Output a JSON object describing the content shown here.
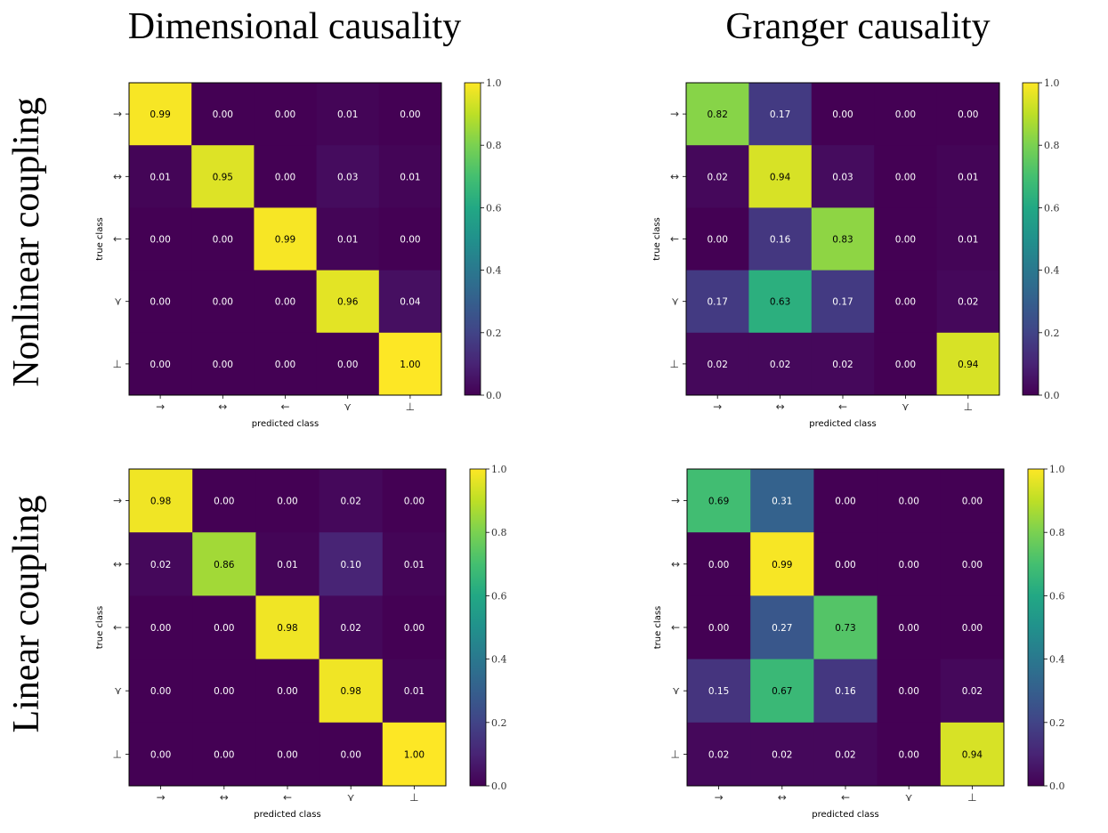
{
  "column_titles": [
    "Dimensional causality",
    "Granger causality"
  ],
  "row_titles": [
    "Nonlinear coupling",
    "Linear coupling"
  ],
  "chart_data": [
    {
      "type": "heatmap",
      "colormap": "viridis",
      "xlabel": "predicted class",
      "ylabel": "true class",
      "x_categories": [
        "→",
        "↔",
        "←",
        "⋎",
        "⊥"
      ],
      "y_categories": [
        "→",
        "↔",
        "←",
        "⋎",
        "⊥"
      ],
      "colorbar_range": [
        0.0,
        1.0
      ],
      "colorbar_ticks": [
        "0.0",
        "0.2",
        "0.4",
        "0.6",
        "0.8",
        "1.0"
      ],
      "values": [
        [
          0.99,
          0.0,
          0.0,
          0.01,
          0.0
        ],
        [
          0.01,
          0.95,
          0.0,
          0.03,
          0.01
        ],
        [
          0.0,
          0.0,
          0.99,
          0.01,
          0.0
        ],
        [
          0.0,
          0.0,
          0.0,
          0.96,
          0.04
        ],
        [
          0.0,
          0.0,
          0.0,
          0.0,
          1.0
        ]
      ]
    },
    {
      "type": "heatmap",
      "colormap": "viridis",
      "xlabel": "predicted class",
      "ylabel": "true class",
      "x_categories": [
        "→",
        "↔",
        "←",
        "⋎",
        "⊥"
      ],
      "y_categories": [
        "→",
        "↔",
        "←",
        "⋎",
        "⊥"
      ],
      "colorbar_range": [
        0.0,
        1.0
      ],
      "colorbar_ticks": [
        "0.0",
        "0.2",
        "0.4",
        "0.6",
        "0.8",
        "1.0"
      ],
      "values": [
        [
          0.82,
          0.17,
          0.0,
          0.0,
          0.0
        ],
        [
          0.02,
          0.94,
          0.03,
          0.0,
          0.01
        ],
        [
          0.0,
          0.16,
          0.83,
          0.0,
          0.01
        ],
        [
          0.17,
          0.63,
          0.17,
          0.0,
          0.02
        ],
        [
          0.02,
          0.02,
          0.02,
          0.0,
          0.94
        ]
      ]
    },
    {
      "type": "heatmap",
      "colormap": "viridis",
      "xlabel": "predicted class",
      "ylabel": "true class",
      "x_categories": [
        "→",
        "↔",
        "←",
        "⋎",
        "⊥"
      ],
      "y_categories": [
        "→",
        "↔",
        "←",
        "⋎",
        "⊥"
      ],
      "colorbar_range": [
        0.0,
        1.0
      ],
      "colorbar_ticks": [
        "0.0",
        "0.2",
        "0.4",
        "0.6",
        "0.8",
        "1.0"
      ],
      "values": [
        [
          0.98,
          0.0,
          0.0,
          0.02,
          0.0
        ],
        [
          0.02,
          0.86,
          0.01,
          0.1,
          0.01
        ],
        [
          0.0,
          0.0,
          0.98,
          0.02,
          0.0
        ],
        [
          0.0,
          0.0,
          0.0,
          0.98,
          0.01
        ],
        [
          0.0,
          0.0,
          0.0,
          0.0,
          1.0
        ]
      ]
    },
    {
      "type": "heatmap",
      "colormap": "viridis",
      "xlabel": "predicted class",
      "ylabel": "true class",
      "x_categories": [
        "→",
        "↔",
        "←",
        "⋎",
        "⊥"
      ],
      "y_categories": [
        "→",
        "↔",
        "←",
        "⋎",
        "⊥"
      ],
      "colorbar_range": [
        0.0,
        1.0
      ],
      "colorbar_ticks": [
        "0.0",
        "0.2",
        "0.4",
        "0.6",
        "0.8",
        "1.0"
      ],
      "values": [
        [
          0.69,
          0.31,
          0.0,
          0.0,
          0.0
        ],
        [
          0.0,
          0.99,
          0.0,
          0.0,
          0.0
        ],
        [
          0.0,
          0.27,
          0.73,
          0.0,
          0.0
        ],
        [
          0.15,
          0.67,
          0.16,
          0.0,
          0.02
        ],
        [
          0.02,
          0.02,
          0.02,
          0.0,
          0.94
        ]
      ]
    }
  ]
}
